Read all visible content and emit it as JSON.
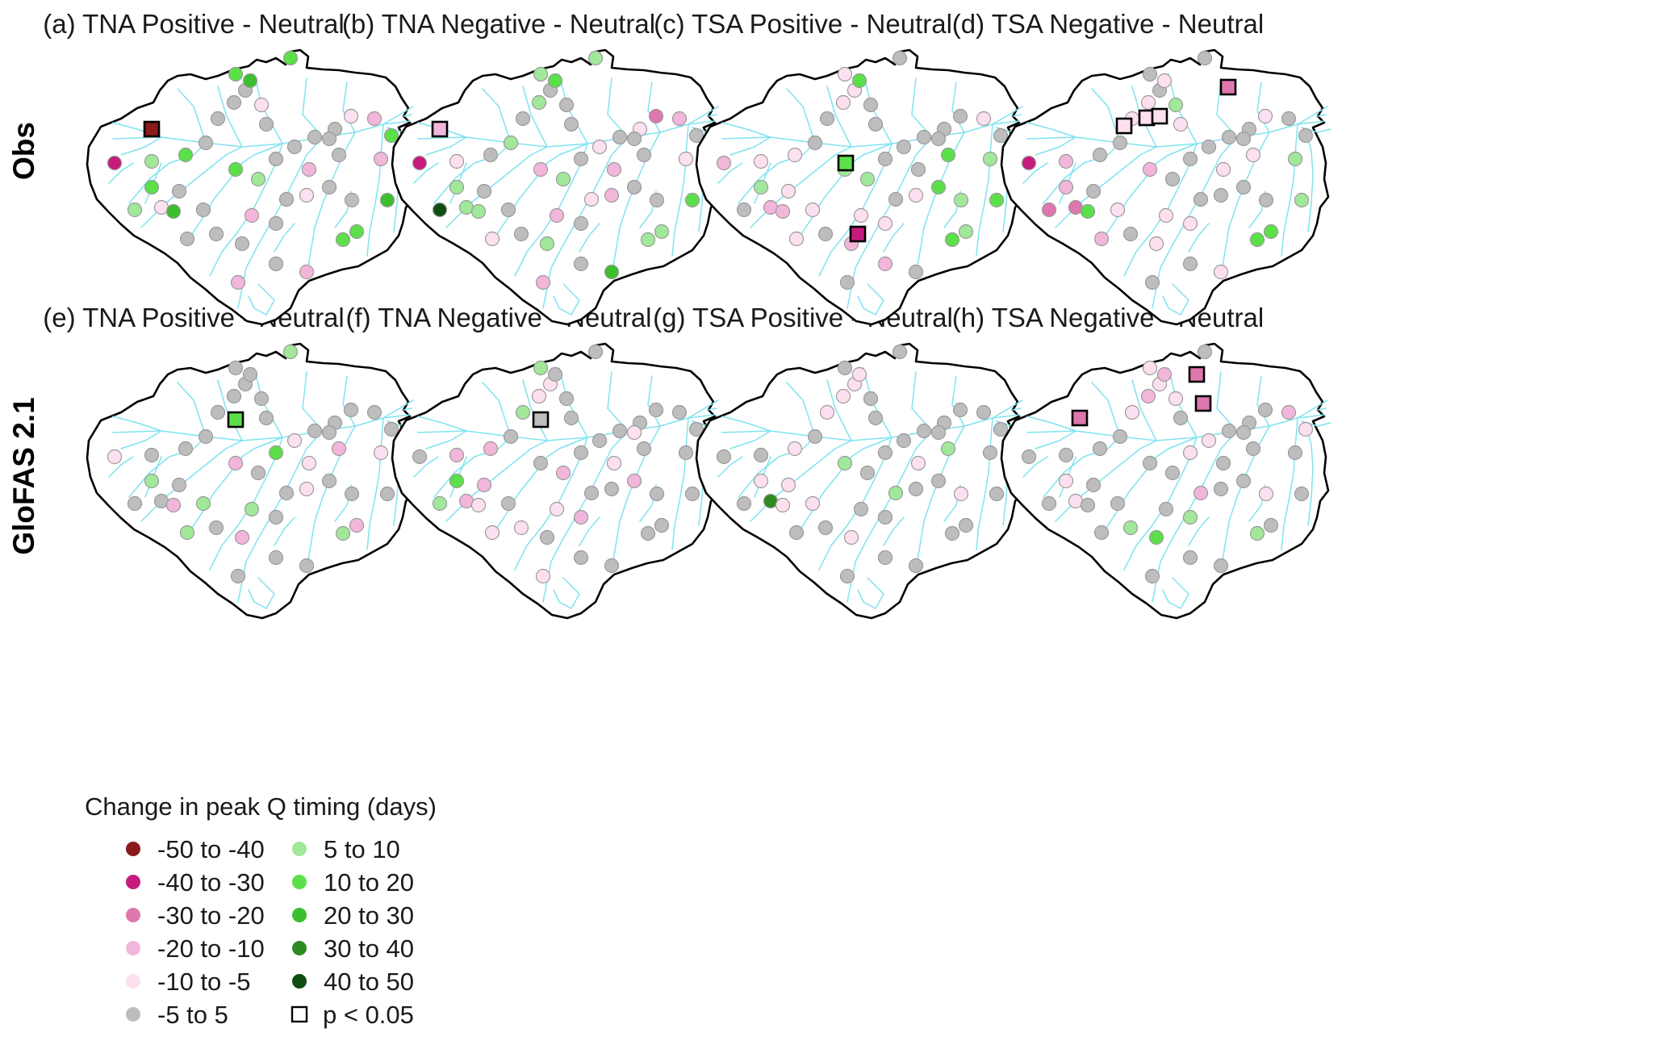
{
  "row_labels": [
    "Obs",
    "GloFAS 2.1"
  ],
  "panels": [
    {
      "id": "a",
      "title": "(a) TNA Positive - Neutral"
    },
    {
      "id": "b",
      "title": "(b) TNA Negative - Neutral"
    },
    {
      "id": "c",
      "title": "(c) TSA Positive - Neutral"
    },
    {
      "id": "d",
      "title": "(d) TSA Negative - Neutral"
    },
    {
      "id": "e",
      "title": "(e) TNA Positive - Neutral"
    },
    {
      "id": "f",
      "title": "(f) TNA Negative - Neutral"
    },
    {
      "id": "g",
      "title": "(g) TSA Positive - Neutral"
    },
    {
      "id": "h",
      "title": "(h) TSA Negative - Neutral"
    }
  ],
  "legend": {
    "title": "Change in peak Q timing (days)",
    "classes": [
      {
        "label": "-50 to -40",
        "color": "#8b1a1a"
      },
      {
        "label": "-40 to -30",
        "color": "#c51b7d"
      },
      {
        "label": "-30 to -20",
        "color": "#de77ae"
      },
      {
        "label": "-20 to -10",
        "color": "#f1b6da"
      },
      {
        "label": "-10 to -5",
        "color": "#fde0ef"
      },
      {
        "label": "-5 to 5",
        "color": "#bdbdbd"
      },
      {
        "label": "5 to 10",
        "color": "#a1e89a"
      },
      {
        "label": "10 to 20",
        "color": "#5be04a"
      },
      {
        "label": "20 to 30",
        "color": "#3cbf2e"
      },
      {
        "label": "30 to 40",
        "color": "#2e8b22"
      },
      {
        "label": "40 to 50",
        "color": "#0f4d12"
      }
    ],
    "significance_label": "p < 0.05"
  }
}
